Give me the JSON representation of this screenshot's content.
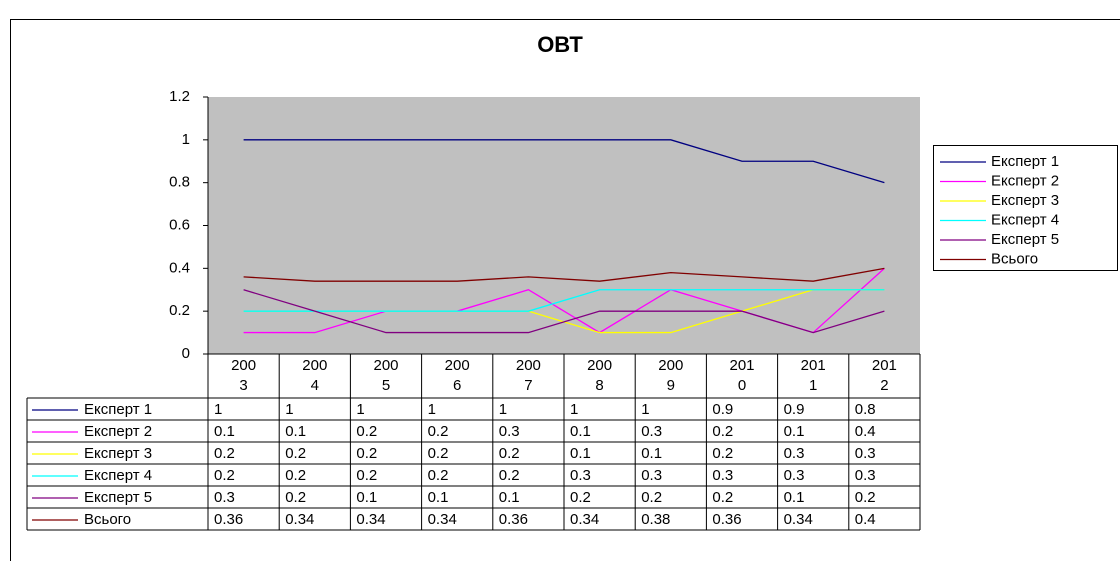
{
  "chart_data": {
    "type": "line",
    "title": "ОВТ",
    "categories": [
      "2003",
      "2004",
      "2005",
      "2006",
      "2007",
      "2008",
      "2009",
      "2010",
      "2011",
      "2012"
    ],
    "series": [
      {
        "name": "Експерт 1",
        "color": "#000080",
        "values": [
          1,
          1,
          1,
          1,
          1,
          1,
          1,
          0.9,
          0.9,
          0.8
        ]
      },
      {
        "name": "Експерт 2",
        "color": "#ff00ff",
        "values": [
          0.1,
          0.1,
          0.2,
          0.2,
          0.3,
          0.1,
          0.3,
          0.2,
          0.1,
          0.4
        ]
      },
      {
        "name": "Експерт 3",
        "color": "#ffff00",
        "values": [
          0.2,
          0.2,
          0.2,
          0.2,
          0.2,
          0.1,
          0.1,
          0.2,
          0.3,
          0.3
        ]
      },
      {
        "name": "Експерт 4",
        "color": "#00ffff",
        "values": [
          0.2,
          0.2,
          0.2,
          0.2,
          0.2,
          0.3,
          0.3,
          0.3,
          0.3,
          0.3
        ]
      },
      {
        "name": "Експерт 5",
        "color": "#800080",
        "values": [
          0.3,
          0.2,
          0.1,
          0.1,
          0.1,
          0.2,
          0.2,
          0.2,
          0.1,
          0.2
        ]
      },
      {
        "name": "Всього",
        "color": "#800000",
        "values": [
          0.36,
          0.34,
          0.34,
          0.34,
          0.36,
          0.34,
          0.38,
          0.36,
          0.34,
          0.4
        ]
      }
    ],
    "ylim": [
      0,
      1.2
    ],
    "yticks": [
      0,
      0.2,
      0.4,
      0.6,
      0.8,
      1,
      1.2
    ],
    "legend": "right"
  }
}
